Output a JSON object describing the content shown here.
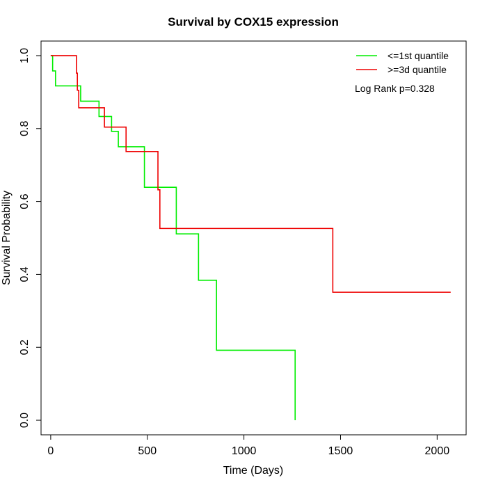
{
  "chart_data": {
    "type": "line",
    "title": "Survival by COX15 expression",
    "xlabel": "Time (Days)",
    "ylabel": "Survival Probability",
    "xlim": [
      -50,
      2150
    ],
    "ylim": [
      -0.04,
      1.04
    ],
    "xticks": [
      0,
      500,
      1000,
      1500,
      2000
    ],
    "yticks": [
      0.0,
      0.2,
      0.4,
      0.6,
      0.8,
      1.0
    ],
    "xtick_labels": [
      "0",
      "500",
      "1000",
      "1500",
      "2000"
    ],
    "ytick_labels": [
      "0.0",
      "0.2",
      "0.4",
      "0.6",
      "0.8",
      "1.0"
    ],
    "grid": false,
    "legend_position": "top-right",
    "annotation": "Log Rank p=0.328",
    "series": [
      {
        "name": "<=1st quantile",
        "color": "#00ee00",
        "steps": [
          [
            0,
            1.0
          ],
          [
            10,
            0.958
          ],
          [
            25,
            0.917
          ],
          [
            155,
            0.875
          ],
          [
            250,
            0.833
          ],
          [
            315,
            0.792
          ],
          [
            350,
            0.75
          ],
          [
            485,
            0.639
          ],
          [
            650,
            0.511
          ],
          [
            765,
            0.384
          ],
          [
            858,
            0.192
          ],
          [
            1265,
            0.0
          ]
        ],
        "end_x": 1265
      },
      {
        "name": ">=3d quantile",
        "color": "#ee0000",
        "steps": [
          [
            0,
            1.0
          ],
          [
            133,
            0.952
          ],
          [
            138,
            0.905
          ],
          [
            145,
            0.857
          ],
          [
            278,
            0.804
          ],
          [
            390,
            0.737
          ],
          [
            555,
            0.632
          ],
          [
            565,
            0.526
          ],
          [
            1460,
            0.351
          ]
        ],
        "end_x": 2070
      }
    ]
  }
}
